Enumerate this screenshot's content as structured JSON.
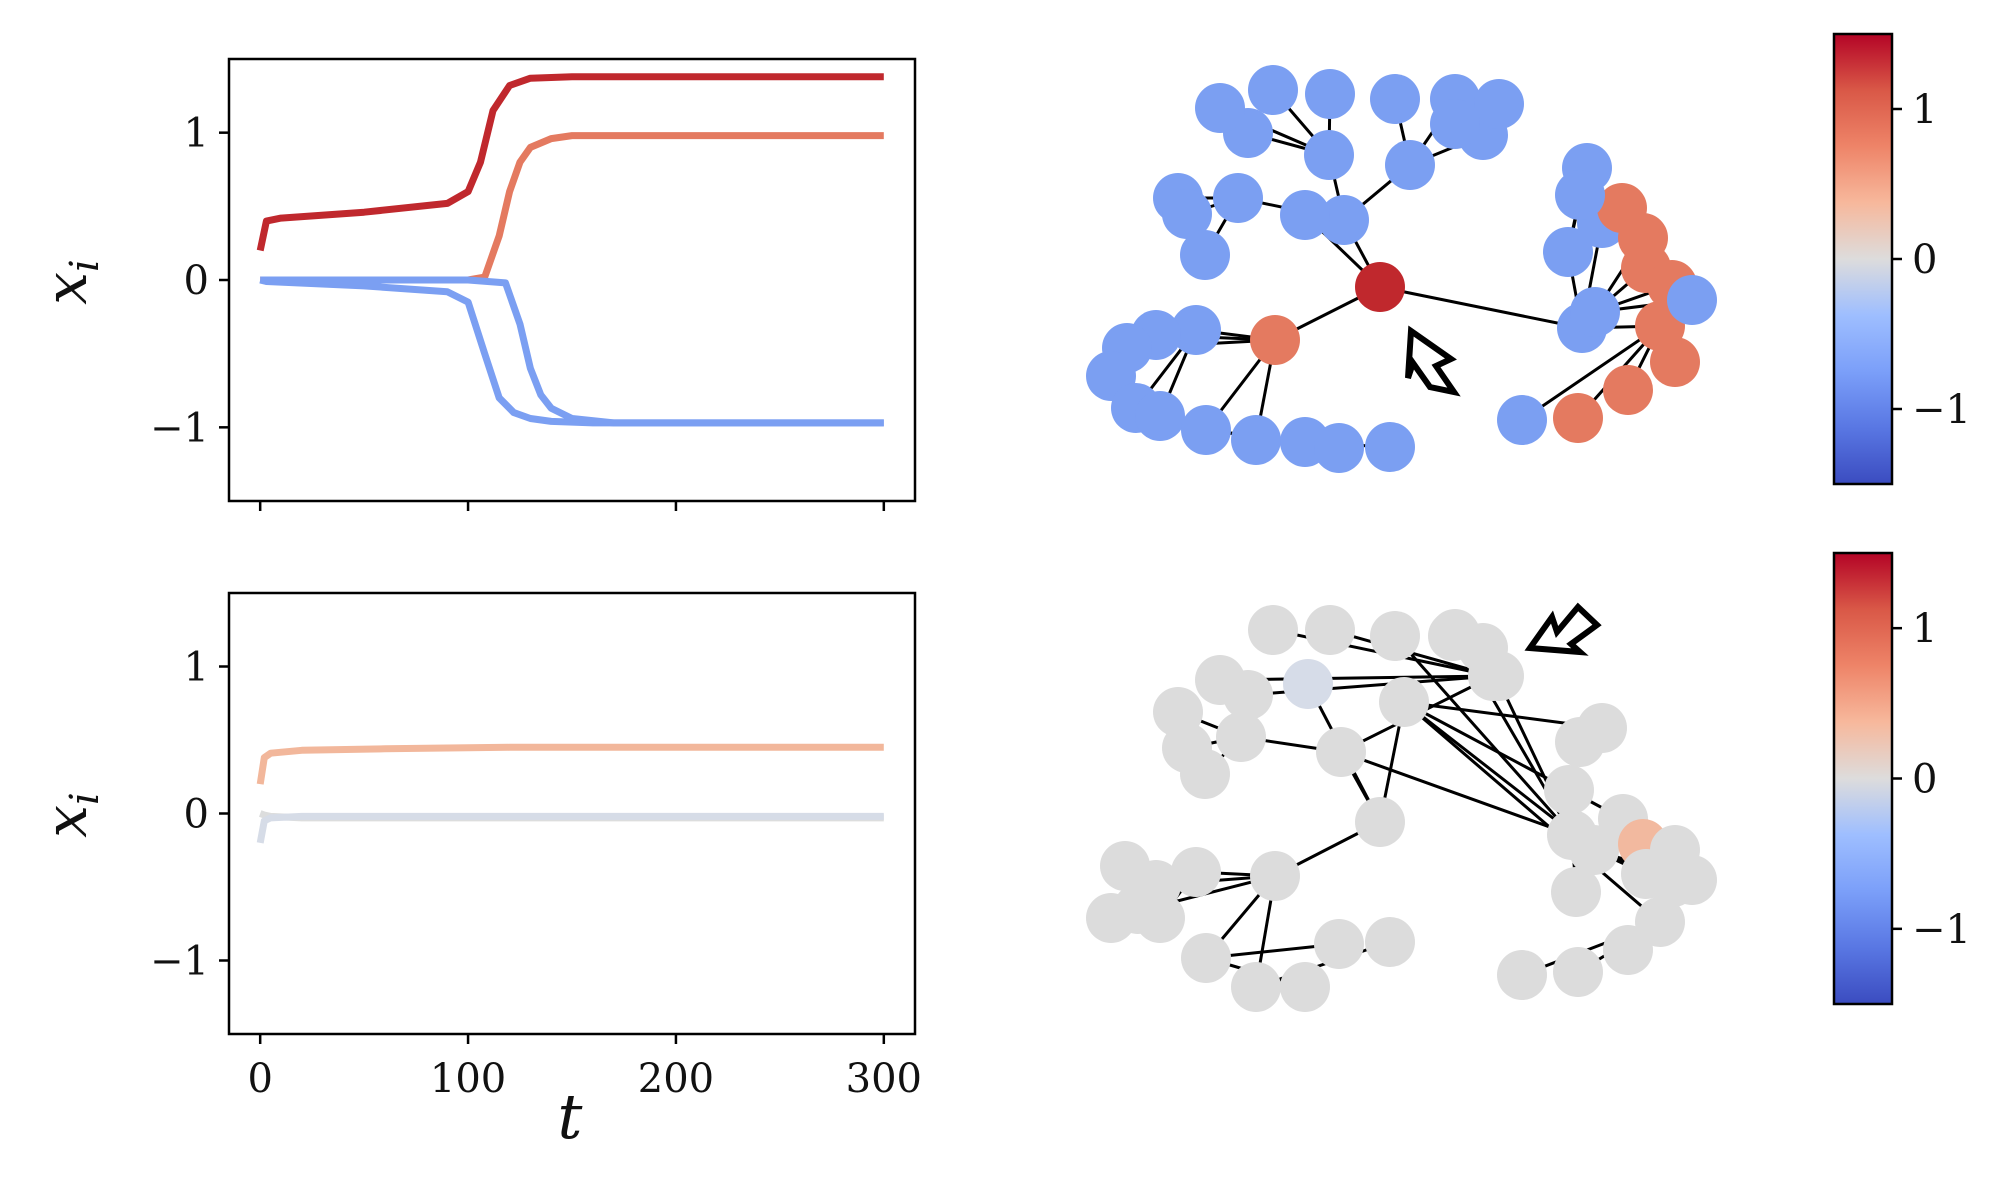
{
  "chart_data": [
    {
      "type": "line",
      "panel": "top-left",
      "title": "",
      "xlabel": "",
      "ylabel": "x_i",
      "xlim": [
        -15,
        315
      ],
      "ylim": [
        -1.5,
        1.5
      ],
      "xticks": [
        0,
        100,
        200,
        300
      ],
      "yticks": [
        -1,
        0,
        1
      ],
      "ytick_labels": [
        "−1",
        "0",
        "1"
      ],
      "grid": false,
      "legend": "none",
      "series": [
        {
          "color": "#c0282d",
          "x": [
            0,
            3,
            10,
            50,
            90,
            100,
            106,
            112,
            120,
            130,
            150,
            200,
            300
          ],
          "y": [
            0.2,
            0.4,
            0.42,
            0.46,
            0.52,
            0.6,
            0.8,
            1.15,
            1.32,
            1.37,
            1.38,
            1.38,
            1.38
          ]
        },
        {
          "color": "#e47a60",
          "x": [
            0,
            3,
            50,
            100,
            108,
            115,
            120,
            125,
            130,
            140,
            150,
            200,
            300
          ],
          "y": [
            0.0,
            0.0,
            0.0,
            0.0,
            0.02,
            0.3,
            0.6,
            0.8,
            0.9,
            0.96,
            0.98,
            0.98,
            0.98
          ]
        },
        {
          "color": "#7b9ff2",
          "x": [
            0,
            3,
            50,
            90,
            100,
            108,
            115,
            122,
            130,
            140,
            160,
            200,
            300
          ],
          "y": [
            0.0,
            -0.01,
            -0.04,
            -0.08,
            -0.15,
            -0.5,
            -0.8,
            -0.9,
            -0.94,
            -0.96,
            -0.97,
            -0.97,
            -0.97
          ]
        },
        {
          "color": "#7b9ff2",
          "x": [
            0,
            3,
            50,
            100,
            118,
            125,
            130,
            135,
            140,
            150,
            170,
            200,
            300
          ],
          "y": [
            0.0,
            0.0,
            0.0,
            0.0,
            -0.02,
            -0.3,
            -0.6,
            -0.78,
            -0.87,
            -0.94,
            -0.97,
            -0.97,
            -0.97
          ]
        }
      ]
    },
    {
      "type": "line",
      "panel": "bottom-left",
      "title": "",
      "xlabel": "t",
      "ylabel": "x_i",
      "xlim": [
        -15,
        315
      ],
      "ylim": [
        -1.5,
        1.5
      ],
      "xticks": [
        0,
        100,
        200,
        300
      ],
      "xtick_labels": [
        "0",
        "100",
        "200",
        "300"
      ],
      "yticks": [
        -1,
        0,
        1
      ],
      "ytick_labels": [
        "−1",
        "0",
        "1"
      ],
      "grid": false,
      "legend": "none",
      "series": [
        {
          "color": "#f2b79b",
          "x": [
            0,
            2,
            5,
            20,
            60,
            120,
            300
          ],
          "y": [
            0.2,
            0.38,
            0.41,
            0.43,
            0.44,
            0.45,
            0.45
          ]
        },
        {
          "color": "#dcdddd",
          "x": [
            0,
            2,
            5,
            20,
            60,
            300
          ],
          "y": [
            0.0,
            -0.01,
            -0.02,
            -0.03,
            -0.03,
            -0.03
          ]
        },
        {
          "color": "#d6dce7",
          "x": [
            0,
            2,
            5,
            20,
            60,
            300
          ],
          "y": [
            -0.2,
            -0.05,
            -0.03,
            -0.02,
            -0.02,
            -0.02
          ]
        }
      ]
    },
    {
      "type": "heatmap",
      "panel": "colorbars",
      "colormap": "coolwarm",
      "clim": [
        -1.5,
        1.5
      ],
      "ticks": [
        -1,
        0,
        1
      ],
      "tick_labels": [
        "−1",
        "0",
        "1"
      ]
    }
  ],
  "network": {
    "color_codes": {
      "P": "#e47a60",
      "R": "#c0282d",
      "B": "#7b9ff2",
      "G": "#dcdcdc",
      "L": "#d6dce8",
      "S": "#f2b99f"
    },
    "top_colors": "RBBPBBBBBBBBPPPPPPPPBBBBBBBBBBBBBBBBBBBBBBBBBB",
    "bottom_colors": "GGLGGGGGGGGGGSGGGGGGGGGGGGGGGGGGGGGGGGGGGGGGGG"
  }
}
